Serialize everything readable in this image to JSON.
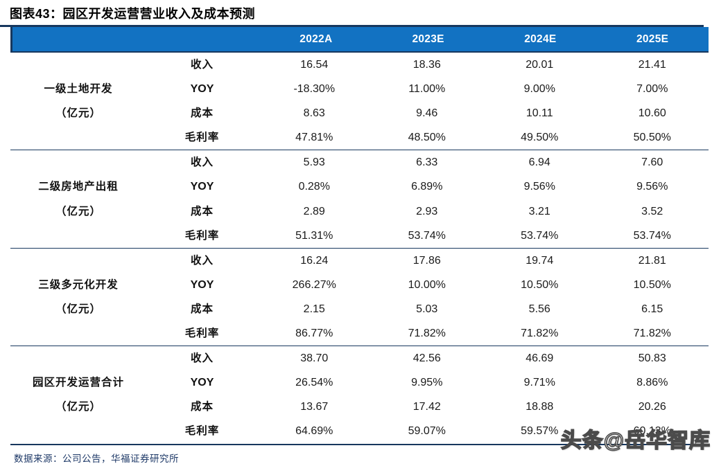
{
  "title": "图表43：园区开发运营营业收入及成本预测",
  "table": {
    "year_headers": [
      "2022A",
      "2023E",
      "2024E",
      "2025E"
    ],
    "metric_labels": [
      "收入",
      "YOY",
      "成本",
      "毛利率"
    ],
    "groups": [
      {
        "name": "一级土地开发",
        "unit": "（亿元）",
        "rows": [
          [
            "16.54",
            "18.36",
            "20.01",
            "21.41"
          ],
          [
            "-18.30%",
            "11.00%",
            "9.00%",
            "7.00%"
          ],
          [
            "8.63",
            "9.46",
            "10.11",
            "10.60"
          ],
          [
            "47.81%",
            "48.50%",
            "49.50%",
            "50.50%"
          ]
        ]
      },
      {
        "name": "二级房地产出租",
        "unit": "（亿元）",
        "rows": [
          [
            "5.93",
            "6.33",
            "6.94",
            "7.60"
          ],
          [
            "0.28%",
            "6.89%",
            "9.56%",
            "9.56%"
          ],
          [
            "2.89",
            "2.93",
            "3.21",
            "3.52"
          ],
          [
            "51.31%",
            "53.74%",
            "53.74%",
            "53.74%"
          ]
        ]
      },
      {
        "name": "三级多元化开发",
        "unit": "（亿元）",
        "rows": [
          [
            "16.24",
            "17.86",
            "19.74",
            "21.81"
          ],
          [
            "266.27%",
            "10.00%",
            "10.50%",
            "10.50%"
          ],
          [
            "2.15",
            "5.03",
            "5.56",
            "6.15"
          ],
          [
            "86.77%",
            "71.82%",
            "71.82%",
            "71.82%"
          ]
        ]
      },
      {
        "name": "园区开发运营合计",
        "unit": "（亿元）",
        "rows": [
          [
            "38.70",
            "42.56",
            "46.69",
            "50.83"
          ],
          [
            "26.54%",
            "9.95%",
            "9.71%",
            "8.86%"
          ],
          [
            "13.67",
            "17.42",
            "18.88",
            "20.26"
          ],
          [
            "64.69%",
            "59.07%",
            "59.57%",
            "60.13%"
          ]
        ]
      }
    ]
  },
  "footer": {
    "source": "数据来源：公司公告，华福证券研究所"
  },
  "watermark": "头条@岳华智库",
  "colors": {
    "header_bg": "#1272C2",
    "line_navy": "#17375E",
    "footer_text": "#1F3A68"
  }
}
